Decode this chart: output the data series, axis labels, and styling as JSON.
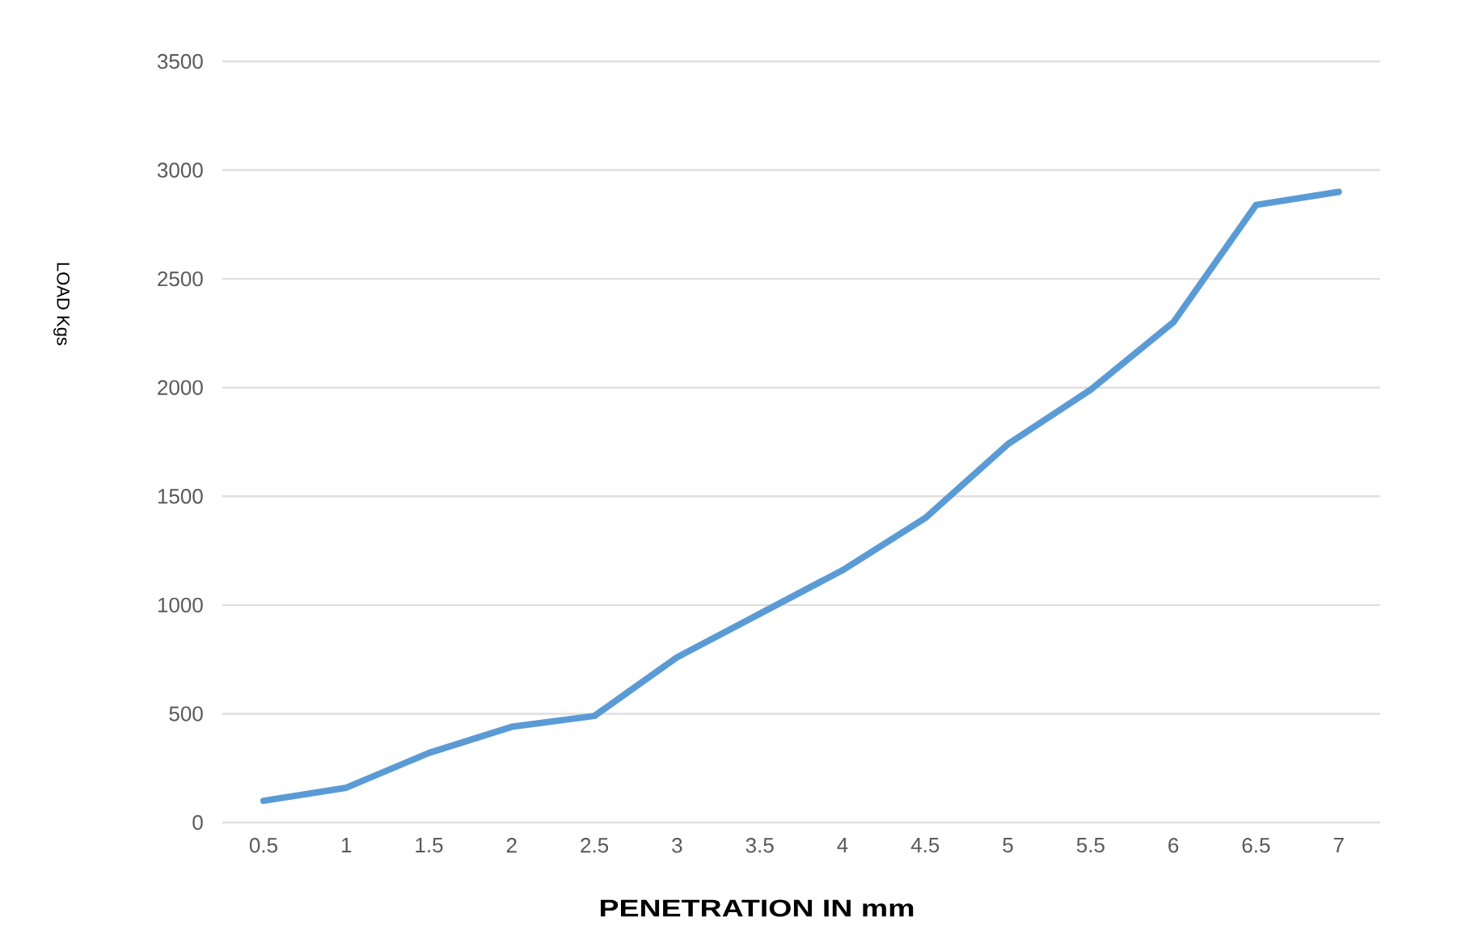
{
  "chart_data": {
    "type": "line",
    "xlabel": "PENETRATION IN mm",
    "ylabel": "LOAD Kgs",
    "categories": [
      "0.5",
      "1",
      "1.5",
      "2",
      "2.5",
      "3",
      "3.5",
      "4",
      "4.5",
      "5",
      "5.5",
      "6",
      "6.5",
      "7"
    ],
    "series": [
      {
        "color": "#5b9bd5",
        "values": [
          100,
          160,
          320,
          440,
          490,
          760,
          960,
          1160,
          1400,
          1740,
          1990,
          2300,
          2840,
          2900
        ]
      }
    ],
    "ylim": [
      0,
      3500
    ],
    "yticks": [
      0,
      500,
      1000,
      1500,
      2000,
      2500,
      3000,
      3500
    ],
    "grid": "y"
  }
}
